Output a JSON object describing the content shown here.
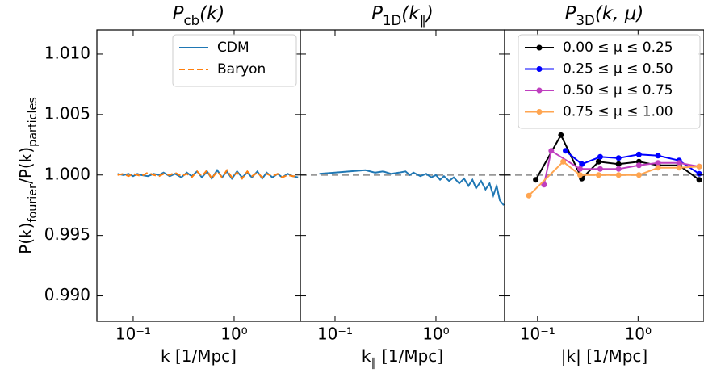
{
  "chart_data": [
    {
      "type": "line",
      "title": [
        "P",
        "cb",
        "(k)"
      ],
      "xlabel": [
        "k [1/Mpc]"
      ],
      "ylabel": [
        "P(k)",
        "fourier",
        "/P(k)",
        "particles"
      ],
      "xscale": "log",
      "xlim": [
        0.0437,
        4.53
      ],
      "xticks": [
        {
          "value": 0.1,
          "label": "10⁻¹"
        },
        {
          "value": 1,
          "label": "10⁰"
        }
      ],
      "ylim": [
        0.9879,
        1.012
      ],
      "yticks": [
        {
          "value": 0.99,
          "label": "0.990"
        },
        {
          "value": 0.995,
          "label": "0.995"
        },
        {
          "value": 1.0,
          "label": "1.000"
        },
        {
          "value": 1.005,
          "label": "1.005"
        },
        {
          "value": 1.01,
          "label": "1.010"
        }
      ],
      "legend": "upper right",
      "series": [
        {
          "name": "CDM",
          "color": "#1f77b4",
          "dash": false,
          "x": [
            0.07,
            0.08,
            0.09,
            0.1,
            0.11,
            0.12,
            0.14,
            0.16,
            0.18,
            0.2,
            0.23,
            0.26,
            0.3,
            0.34,
            0.38,
            0.43,
            0.48,
            0.54,
            0.6,
            0.68,
            0.76,
            0.85,
            0.95,
            1.07,
            1.2,
            1.35,
            1.5,
            1.7,
            1.9,
            2.1,
            2.4,
            2.7,
            3.0,
            3.4,
            3.8,
            4.3
          ],
          "values": [
            1.0001,
            1.0,
            1.0001,
            0.9999,
            1.0001,
            1.0,
            0.9999,
            1.0001,
            1.0,
            1.0002,
            0.9999,
            1.0001,
            0.9998,
            1.0002,
            0.9999,
            1.0003,
            0.9998,
            1.0003,
            0.9997,
            1.0004,
            0.9998,
            1.0003,
            0.9997,
            1.0003,
            0.9998,
            1.0002,
            0.9998,
            1.0003,
            0.9997,
            1.0002,
            0.9998,
            1.0001,
            0.9998,
            1.0001,
            0.9999,
            0.9998
          ]
        },
        {
          "name": "Baryon",
          "color": "#ff7f0e",
          "dash": true,
          "x": [
            0.07,
            0.08,
            0.09,
            0.1,
            0.11,
            0.12,
            0.14,
            0.16,
            0.18,
            0.2,
            0.23,
            0.26,
            0.3,
            0.34,
            0.38,
            0.43,
            0.48,
            0.54,
            0.6,
            0.68,
            0.76,
            0.85,
            0.95,
            1.07,
            1.2,
            1.35,
            1.5,
            1.7,
            1.9,
            2.1,
            2.4,
            2.7,
            3.0,
            3.4,
            3.8,
            4.3
          ],
          "values": [
            1.0,
            1.0001,
            0.9999,
            1.0001,
            1.0,
            0.9999,
            1.0002,
            1.0,
            0.9999,
            1.0001,
            1.0,
            1.0002,
            0.9999,
            1.0001,
            0.9998,
            1.0003,
            0.9999,
            1.0004,
            0.9997,
            1.0003,
            0.9998,
            1.0004,
            0.9998,
            1.0002,
            0.9997,
            1.0003,
            0.9999,
            1.0002,
            0.9998,
            1.0001,
            0.9999,
            1.0001,
            0.9998,
            1.0,
            0.9999,
            0.9999
          ]
        }
      ]
    },
    {
      "type": "line",
      "title": [
        "P",
        "1D",
        "(k",
        "∥",
        ")"
      ],
      "xlabel": [
        "k",
        "∥",
        " [1/Mpc]"
      ],
      "xscale": "log",
      "xlim": [
        0.0453,
        4.79
      ],
      "xticks": [
        {
          "value": 0.1,
          "label": "10⁻¹"
        },
        {
          "value": 1,
          "label": "10⁰"
        }
      ],
      "ylim": [
        0.9879,
        1.012
      ],
      "hline": 1.0,
      "series": [
        {
          "name": "CDM",
          "color": "#1f77b4",
          "dash": false,
          "x": [
            0.07,
            0.1,
            0.14,
            0.2,
            0.25,
            0.3,
            0.36,
            0.43,
            0.5,
            0.55,
            0.6,
            0.7,
            0.8,
            0.9,
            1.0,
            1.1,
            1.2,
            1.35,
            1.5,
            1.7,
            1.9,
            2.1,
            2.3,
            2.5,
            2.8,
            3.1,
            3.4,
            3.7,
            4.0,
            4.3,
            4.7
          ],
          "values": [
            1.0001,
            1.0002,
            1.0003,
            1.0004,
            1.0002,
            1.0003,
            1.0001,
            1.0002,
            1.0003,
            1.0,
            1.0002,
            0.9999,
            1.0001,
            0.9998,
            1.0,
            0.9996,
            0.9999,
            0.9995,
            0.9998,
            0.9993,
            0.9997,
            0.9991,
            0.9996,
            0.9989,
            0.9995,
            0.9988,
            0.9993,
            0.9983,
            0.9991,
            0.9979,
            0.9975
          ]
        }
      ]
    },
    {
      "type": "line",
      "title": [
        "P",
        "3D",
        "(k, μ)"
      ],
      "xlabel": [
        "|k| [1/Mpc]"
      ],
      "xscale": "log",
      "xlim": [
        0.047,
        4.53
      ],
      "xticks": [
        {
          "value": 0.1,
          "label": "10⁻¹"
        },
        {
          "value": 1,
          "label": "10⁰"
        }
      ],
      "ylim": [
        0.9879,
        1.012
      ],
      "hline": 1.0,
      "legend": "upper right",
      "marker": true,
      "series": [
        {
          "name": "0.00 ≤ μ ≤ 0.25",
          "color": "#000000",
          "x": [
            0.096,
            0.171,
            0.276,
            0.405,
            0.64,
            1.02,
            1.58,
            2.56,
            4.06
          ],
          "values": [
            0.9996,
            1.0033,
            0.9997,
            1.0011,
            1.0009,
            1.0011,
            1.0008,
            1.0008,
            0.9996
          ]
        },
        {
          "name": "0.25 ≤ μ ≤ 0.50",
          "color": "#0000ff",
          "x": [
            0.19,
            0.276,
            0.42,
            0.64,
            1.02,
            1.58,
            2.56,
            4.06
          ],
          "values": [
            1.002,
            1.0009,
            1.0015,
            1.0014,
            1.0017,
            1.0016,
            1.0012,
            1.0001
          ]
        },
        {
          "name": "0.50 ≤ μ ≤ 0.75",
          "color": "#bf3fbf",
          "x": [
            0.116,
            0.137,
            0.265,
            0.42,
            0.64,
            1.02,
            1.58,
            2.56,
            4.06
          ],
          "values": [
            0.9992,
            1.002,
            1.0005,
            1.0005,
            1.0005,
            1.0008,
            1.001,
            1.001,
            1.0007
          ]
        },
        {
          "name": "0.75 ≤ μ ≤ 1.00",
          "color": "#ffa550",
          "x": [
            0.082,
            0.18,
            0.265,
            0.405,
            0.64,
            1.02,
            1.58,
            2.56,
            4.06
          ],
          "values": [
            0.9983,
            1.0011,
            1.0,
            1.0,
            1.0,
            1.0,
            1.0006,
            1.0006,
            1.0007
          ]
        }
      ]
    }
  ]
}
